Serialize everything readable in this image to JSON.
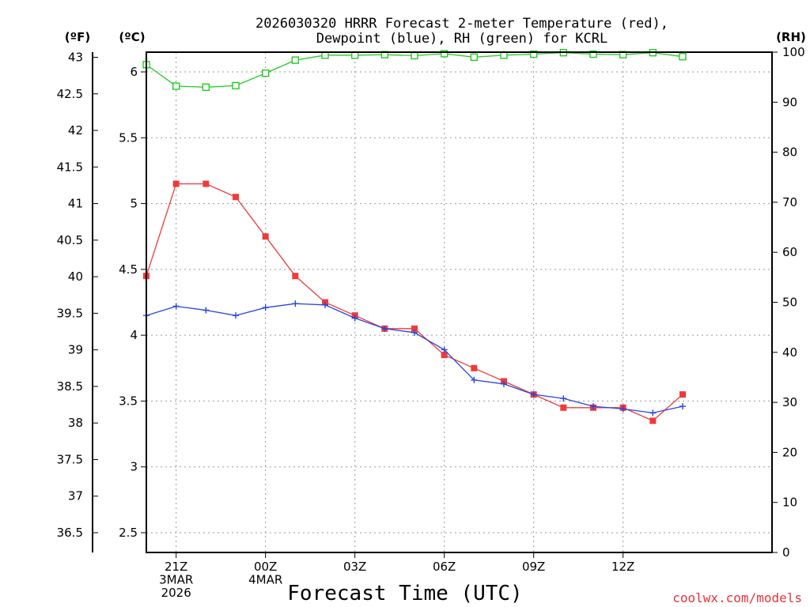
{
  "chart_data": {
    "type": "line",
    "title_line1": "2026030320 HRRR Forecast 2-meter Temperature (red),",
    "title_line2": "Dewpoint (blue), RH (green) for KCRL",
    "xlabel": "Forecast Time (UTC)",
    "credit": "coolwx.com/models",
    "left_unit_f": "(ºF)",
    "left_unit_c": "(ºC)",
    "right_unit": "(RH)",
    "hours": [
      0,
      1,
      2,
      3,
      4,
      5,
      6,
      7,
      8,
      9,
      10,
      11,
      12,
      13,
      14,
      15,
      16,
      17,
      18,
      19,
      20,
      21
    ],
    "x_ticks": [
      {
        "hour": 1,
        "lines": [
          "21Z",
          "3MAR",
          "2026"
        ]
      },
      {
        "hour": 4,
        "lines": [
          "00Z",
          "4MAR"
        ]
      },
      {
        "hour": 7,
        "lines": [
          "03Z"
        ]
      },
      {
        "hour": 10,
        "lines": [
          "06Z"
        ]
      },
      {
        "hour": 13,
        "lines": [
          "09Z"
        ]
      },
      {
        "hour": 16,
        "lines": [
          "12Z"
        ]
      }
    ],
    "c_axis": {
      "min": 2.35,
      "max": 6.15,
      "ticks": [
        "2.5",
        "3",
        "3.5",
        "4",
        "4.5",
        "5",
        "5.5",
        "6"
      ]
    },
    "f_ticks": [
      "36.5",
      "37",
      "37.5",
      "38",
      "38.5",
      "39",
      "39.5",
      "40",
      "40.5",
      "41",
      "41.5",
      "42",
      "42.5",
      "43"
    ],
    "rh_axis": {
      "min": 0,
      "max": 100,
      "ticks": [
        "0",
        "10",
        "20",
        "30",
        "40",
        "50",
        "60",
        "70",
        "80",
        "90",
        "100"
      ]
    },
    "series": [
      {
        "name": "Temperature",
        "axis": "c",
        "color": "#f03a3a",
        "marker": "square-filled",
        "values": [
          4.45,
          5.15,
          5.15,
          5.05,
          4.75,
          4.45,
          4.25,
          4.15,
          4.05,
          4.05,
          3.85,
          3.75,
          3.65,
          3.55,
          3.45,
          3.45,
          3.45,
          3.35,
          3.55
        ]
      },
      {
        "name": "Dewpoint",
        "axis": "c",
        "color": "#2845e0",
        "marker": "plus",
        "values": [
          4.15,
          4.22,
          4.19,
          4.15,
          4.21,
          4.24,
          4.23,
          4.13,
          4.05,
          4.02,
          3.89,
          3.66,
          3.63,
          3.55,
          3.52,
          3.46,
          3.44,
          3.41,
          3.46
        ]
      },
      {
        "name": "RH",
        "axis": "rh",
        "color": "#22cc22",
        "marker": "square-open",
        "values": [
          97.5,
          93.2,
          93.0,
          93.3,
          95.8,
          98.4,
          99.4,
          99.4,
          99.5,
          99.3,
          99.7,
          99.0,
          99.4,
          99.6,
          99.9,
          99.6,
          99.5,
          99.9,
          99.1
        ]
      }
    ]
  }
}
